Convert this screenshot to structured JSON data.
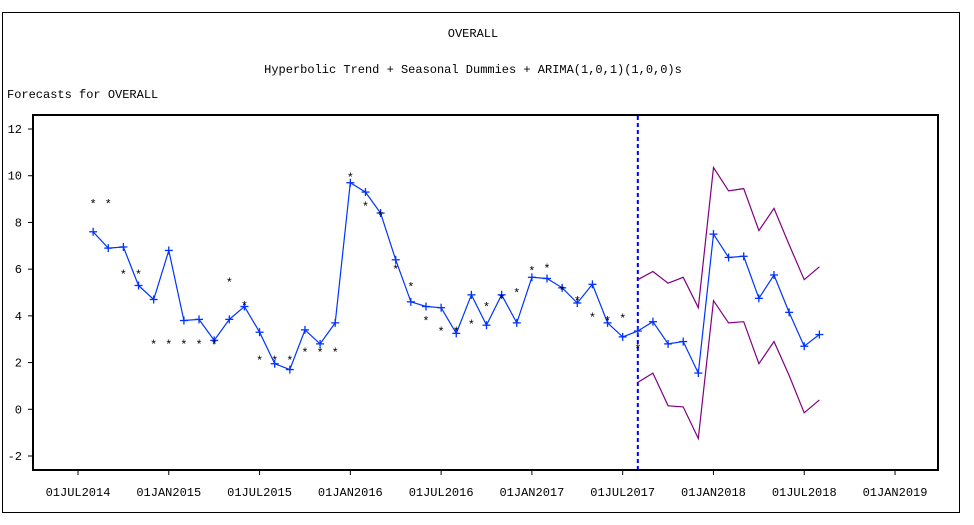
{
  "chart_data": {
    "type": "line",
    "title": "OVERALL",
    "subtitle": "Hyperbolic Trend + Seasonal Dummies + ARIMA(1,0,1)(1,0,0)s",
    "ylabel": "Forecasts for OVERALL",
    "xlabel": "",
    "ylim": [
      -2,
      12
    ],
    "yticks": [
      -2,
      0,
      2,
      4,
      6,
      8,
      10,
      12
    ],
    "xtick_labels": [
      "01JUL2014",
      "01JAN2015",
      "01JUL2015",
      "01JAN2016",
      "01JUL2016",
      "01JAN2017",
      "01JUL2017",
      "01JAN2018",
      "01JUL2018",
      "01JAN2019"
    ],
    "x_start_month": "2014-08",
    "forecast_start_month": "2017-08",
    "grid": false,
    "colors": {
      "forecast": "#0033ff",
      "ci": "#800080",
      "actual": "#000000",
      "refline": "#0000ff"
    },
    "series": [
      {
        "name": "Actual",
        "marker": "*",
        "values": [
          8.95,
          8.95,
          5.95,
          5.95,
          2.95,
          2.95,
          2.95,
          2.95,
          2.95,
          5.6,
          4.6,
          2.25,
          2.25,
          2.25,
          2.6,
          2.6,
          2.6,
          10.1,
          8.85,
          8.45,
          6.15,
          5.4,
          3.95,
          3.5,
          3.5,
          3.8,
          4.55,
          4.9,
          5.15,
          6.1,
          6.2,
          5.25,
          4.8,
          4.1,
          3.95,
          4.05,
          2.75
        ]
      },
      {
        "name": "Forecast",
        "marker": "+",
        "values": [
          7.6,
          6.9,
          6.95,
          5.3,
          4.7,
          6.8,
          3.8,
          3.85,
          2.95,
          3.85,
          4.4,
          3.3,
          1.95,
          1.7,
          3.4,
          2.8,
          3.7,
          9.7,
          9.3,
          8.4,
          6.4,
          4.6,
          4.4,
          4.35,
          3.25,
          4.9,
          3.6,
          4.9,
          3.7,
          5.65,
          5.6,
          5.2,
          4.55,
          5.35,
          3.7,
          3.1,
          3.35,
          3.75,
          2.8,
          2.9,
          1.55,
          7.5,
          6.5,
          6.55,
          4.75,
          5.75,
          4.15,
          2.7,
          3.2
        ]
      },
      {
        "name": "Upper 95%",
        "offset_months": 36,
        "values": [
          5.55,
          5.9,
          5.4,
          5.65,
          4.35,
          10.35,
          9.35,
          9.45,
          7.65,
          8.6,
          7.05,
          5.55,
          6.1
        ]
      },
      {
        "name": "Lower 95%",
        "offset_months": 36,
        "values": [
          1.15,
          1.55,
          0.15,
          0.1,
          -1.25,
          4.65,
          3.7,
          3.75,
          1.95,
          2.9,
          1.45,
          -0.15,
          0.4
        ]
      }
    ]
  }
}
